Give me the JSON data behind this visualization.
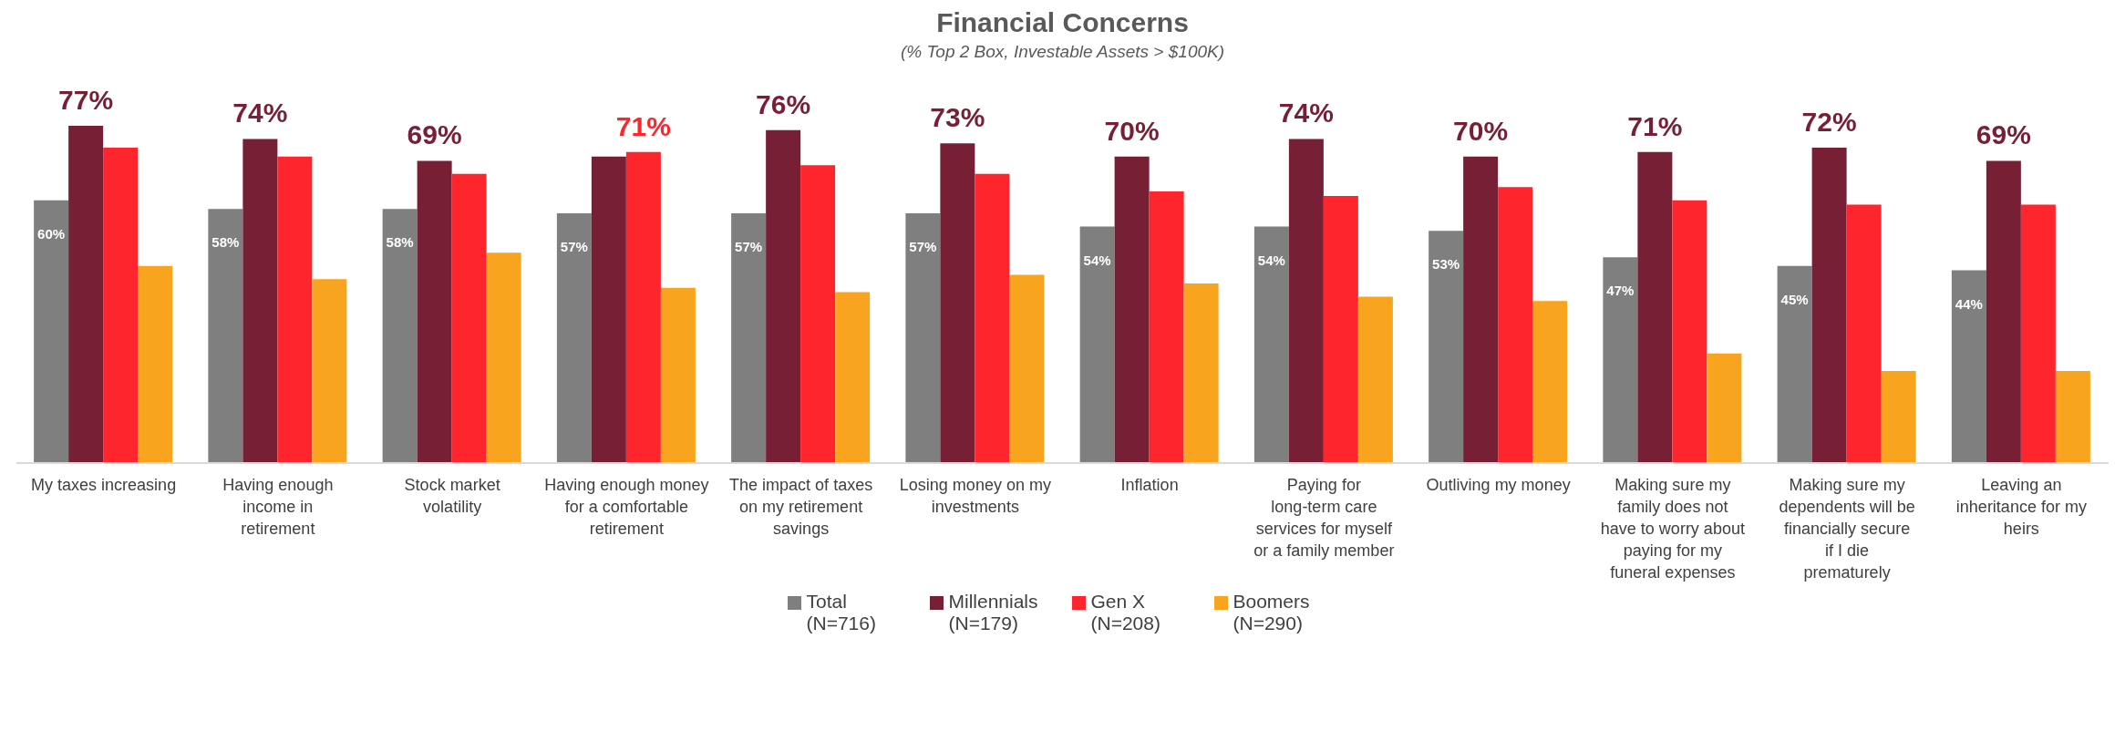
{
  "chart_data": {
    "type": "bar",
    "title": "Financial Concerns",
    "subtitle": "(% Top 2 Box, Investable Assets > $100K)",
    "categories": [
      "My taxes increasing",
      "Having enough income in retirement",
      "Stock market volatility",
      "Having enough money for a comfortable retirement",
      "The impact of taxes on my retirement savings",
      "Losing money on my investments",
      "Inflation",
      "Paying for long-term care services for myself or a family member",
      "Outliving my money",
      "Making sure my family does not have to worry about paying for my funeral expenses",
      "Making sure my dependents will be financially secure if I die prematurely",
      "Leaving an inheritance for my heirs"
    ],
    "series": [
      {
        "name": "Total (N=716)",
        "color": "#7f7f7f",
        "values": [
          60,
          58,
          58,
          57,
          57,
          57,
          54,
          54,
          53,
          47,
          45,
          44
        ],
        "value_labels": [
          "60%",
          "58%",
          "58%",
          "57%",
          "57%",
          "57%",
          "54%",
          "54%",
          "53%",
          "47%",
          "45%",
          "44%"
        ]
      },
      {
        "name": "Millennials (N=179)",
        "color": "#771f35",
        "values": [
          77,
          74,
          69,
          70,
          76,
          73,
          70,
          74,
          70,
          71,
          72,
          69
        ],
        "value_labels": [
          "77%",
          "74%",
          "69%",
          null,
          "76%",
          "73%",
          "70%",
          "74%",
          "70%",
          "71%",
          "72%",
          "69%"
        ]
      },
      {
        "name": "Gen X (N=208)",
        "color": "#ff252d",
        "values": [
          72,
          70,
          66,
          71,
          68,
          66,
          62,
          61,
          63,
          60,
          59,
          59
        ],
        "value_labels": [
          null,
          null,
          null,
          "71%",
          null,
          null,
          null,
          null,
          null,
          null,
          null,
          null
        ]
      },
      {
        "name": "Boomers (N=290)",
        "color": "#f9a41f",
        "values": [
          45,
          42,
          48,
          40,
          39,
          43,
          41,
          38,
          37,
          25,
          21,
          21
        ],
        "value_labels": [
          null,
          null,
          null,
          null,
          null,
          null,
          null,
          null,
          null,
          null,
          null,
          null
        ]
      }
    ],
    "legend": "bottom",
    "grid": false
  }
}
